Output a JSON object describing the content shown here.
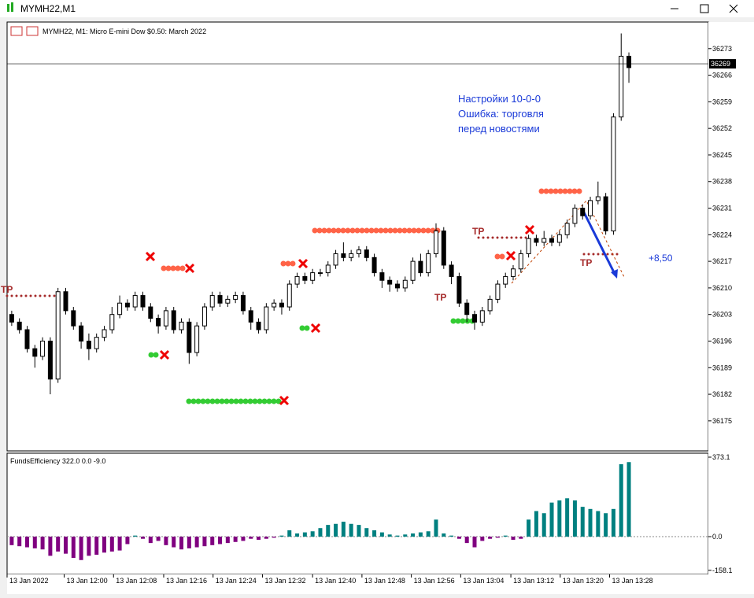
{
  "window": {
    "title": "MYMH22,M1"
  },
  "chart_data": {
    "type": "candlestick",
    "title": "MYMH22, M1:  Micro E-mini Dow $0.50: March 2022",
    "open": [
      36203,
      36201,
      36199,
      36194,
      36192,
      36196,
      36186,
      36209,
      36204,
      36200,
      36196,
      36194,
      36197,
      36199,
      36203,
      36206,
      36205,
      36208,
      36205,
      36202,
      36200,
      36204,
      36199,
      36201,
      36193,
      36200,
      36205,
      36208,
      36206,
      36207,
      36208,
      36204,
      36201,
      36199,
      36205,
      36206,
      36205,
      36211,
      36213,
      36212,
      36214,
      36214,
      36216,
      36219,
      36218,
      36219,
      36220,
      36218,
      36214,
      36212,
      36211,
      36210,
      36212,
      36217,
      36214,
      36219,
      36225,
      36216,
      36213,
      36206,
      36203,
      36201,
      36204,
      36207,
      36211,
      36213,
      36215,
      36219,
      36223,
      36222,
      36223,
      36222,
      36224,
      36227,
      36231,
      36229,
      36233,
      36234,
      36225,
      36255,
      36271
    ],
    "high": [
      36204,
      36202,
      36200,
      36195,
      36197,
      36197,
      36210,
      36210,
      36205,
      36201,
      36198,
      36198,
      36200,
      36205,
      36208,
      36207,
      36209,
      36209,
      36206,
      36203,
      36205,
      36205,
      36202,
      36202,
      36201,
      36206,
      36209,
      36209,
      36208,
      36209,
      36209,
      36205,
      36202,
      36206,
      36207,
      36207,
      36212,
      36214,
      36214,
      36215,
      36215,
      36217,
      36220,
      36222,
      36220,
      36221,
      36221,
      36219,
      36215,
      36213,
      36212,
      36213,
      36218,
      36219,
      36220,
      36227,
      36226,
      36217,
      36214,
      36207,
      36204,
      36205,
      36208,
      36212,
      36214,
      36216,
      36220,
      36224,
      36224,
      36225,
      36224,
      36225,
      36228,
      36232,
      36232,
      36234,
      36238,
      36235,
      36256,
      36277,
      36272
    ],
    "low": [
      36200,
      36198,
      36193,
      36189,
      36191,
      36182,
      36185,
      36203,
      36199,
      36194,
      36191,
      36193,
      36196,
      36198,
      36202,
      36204,
      36204,
      36204,
      36201,
      36198,
      36199,
      36198,
      36198,
      36190,
      36192,
      36199,
      36204,
      36205,
      36205,
      36206,
      36203,
      36199,
      36198,
      36198,
      36204,
      36203,
      36204,
      36210,
      36211,
      36211,
      36213,
      36213,
      36215,
      36217,
      36217,
      36218,
      36217,
      36213,
      36210,
      36209,
      36209,
      36209,
      36211,
      36213,
      36213,
      36218,
      36215,
      36211,
      36205,
      36201,
      36199,
      36200,
      36203,
      36206,
      36210,
      36212,
      36214,
      36218,
      36221,
      36221,
      36221,
      36221,
      36223,
      36226,
      36228,
      36228,
      36232,
      36224,
      36224,
      36254,
      36264
    ],
    "close": [
      36201,
      36199,
      36194,
      36192,
      36196,
      36186,
      36209,
      36204,
      36200,
      36196,
      36194,
      36197,
      36199,
      36203,
      36206,
      36205,
      36208,
      36205,
      36202,
      36200,
      36204,
      36199,
      36201,
      36193,
      36200,
      36205,
      36208,
      36206,
      36207,
      36208,
      36204,
      36201,
      36199,
      36205,
      36206,
      36205,
      36211,
      36213,
      36212,
      36214,
      36214,
      36216,
      36219,
      36218,
      36219,
      36220,
      36218,
      36214,
      36212,
      36211,
      36210,
      36212,
      36217,
      36214,
      36219,
      36225,
      36216,
      36213,
      36206,
      36203,
      36201,
      36204,
      36207,
      36211,
      36213,
      36215,
      36219,
      36223,
      36222,
      36223,
      36222,
      36224,
      36227,
      36231,
      36229,
      36233,
      36234,
      36225,
      36255,
      36271,
      36268
    ],
    "ylim": [
      36167.1,
      36280.0
    ],
    "yticks": [
      36273,
      36266,
      36259,
      36252,
      36245,
      36238,
      36231,
      36224,
      36217,
      36210,
      36203,
      36196,
      36189,
      36182,
      36175
    ],
    "xlim": [
      -0.6,
      90.3
    ],
    "xticks": [
      {
        "value": -0.6,
        "label": "13 Jan 2022"
      },
      {
        "value": 6.8,
        "label": "13 Jan 12:00"
      },
      {
        "value": 13.2,
        "label": "13 Jan 12:08"
      },
      {
        "value": 19.7,
        "label": "13 Jan 12:16"
      },
      {
        "value": 26.1,
        "label": "13 Jan 12:24"
      },
      {
        "value": 32.5,
        "label": "13 Jan 12:32"
      },
      {
        "value": 39.0,
        "label": "13 Jan 12:40"
      },
      {
        "value": 45.4,
        "label": "13 Jan 12:48"
      },
      {
        "value": 51.8,
        "label": "13 Jan 12:56"
      },
      {
        "value": 58.2,
        "label": "13 Jan 13:04"
      },
      {
        "value": 64.7,
        "label": "13 Jan 13:12"
      },
      {
        "value": 71.1,
        "label": "13 Jan 13:20"
      },
      {
        "value": 77.5,
        "label": "13 Jan 13:28"
      }
    ],
    "bid": 36269,
    "annotations": [
      "Настройки 10-0-0",
      "Ошибка: торговля",
      "перед новостями",
      "+8,50",
      "TP",
      "TP",
      "TP",
      "TP"
    ],
    "indicator": {
      "title": "FundsEfficiency 322.0 0.0 -9.0",
      "pos_color": "#008080",
      "neg_color": "#800080",
      "ylim": [
        -177.3,
        391.6
      ],
      "yticks": [
        373.1,
        {
          "value": 0,
          "label": "0.0"
        },
        -158.1
      ],
      "values": [
        -40,
        -45,
        -50,
        -55,
        -60,
        -90,
        -70,
        -80,
        -100,
        -110,
        -90,
        -85,
        -75,
        -70,
        -65,
        -35,
        5,
        -10,
        -30,
        -20,
        -40,
        -50,
        -60,
        -55,
        -50,
        -45,
        -40,
        -35,
        -30,
        -25,
        -20,
        -10,
        -15,
        -10,
        -5,
        5,
        30,
        15,
        20,
        25,
        40,
        55,
        60,
        70,
        60,
        55,
        40,
        30,
        20,
        10,
        5,
        10,
        15,
        20,
        25,
        80,
        15,
        5,
        -10,
        -30,
        -50,
        -20,
        -10,
        -5,
        5,
        -15,
        -10,
        80,
        120,
        110,
        160,
        170,
        180,
        170,
        140,
        130,
        120,
        110,
        130,
        340,
        350
      ]
    }
  }
}
